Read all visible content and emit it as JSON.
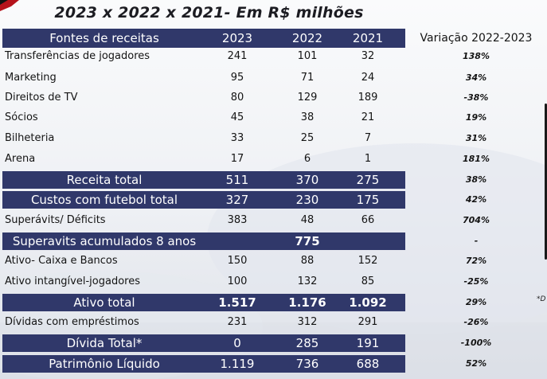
{
  "title": "2023 x 2022 x 2021- Em R$ milhões",
  "side_note": "*D",
  "header": {
    "label": "Fontes de receitas",
    "y2023": "2023",
    "y2022": "2022",
    "y2021": "2021",
    "variation": "Variação 2022-2023"
  },
  "rows": [
    {
      "label": "Transferências de jogadores",
      "v2023": "241",
      "v2022": "101",
      "v2021": "32",
      "var": "138%"
    },
    {
      "label": "Marketing",
      "v2023": "95",
      "v2022": "71",
      "v2021": "24",
      "var": "34%"
    },
    {
      "label": "Direitos de TV",
      "v2023": "80",
      "v2022": "129",
      "v2021": "189",
      "var": "-38%"
    },
    {
      "label": "Sócios",
      "v2023": "45",
      "v2022": "38",
      "v2021": "21",
      "var": "19%"
    },
    {
      "label": "Bilheteria",
      "v2023": "33",
      "v2022": "25",
      "v2021": "7",
      "var": "31%"
    },
    {
      "label": "Arena",
      "v2023": "17",
      "v2022": "6",
      "v2021": "1",
      "var": "181%"
    },
    {
      "label": "Receita total",
      "v2023": "511",
      "v2022": "370",
      "v2021": "275",
      "var": "38%"
    },
    {
      "label": "Custos com futebol total",
      "v2023": "327",
      "v2022": "230",
      "v2021": "175",
      "var": "42%"
    },
    {
      "label": "Superávits/ Déficits",
      "v2023": "383",
      "v2022": "48",
      "v2021": "66",
      "var": "704%"
    },
    {
      "label": "Superavits acumulados 8 anos",
      "combined": "775",
      "var": "-"
    },
    {
      "label": "Ativo- Caixa e Bancos",
      "v2023": "150",
      "v2022": "88",
      "v2021": "152",
      "var": "72%"
    },
    {
      "label": "Ativo intangível-jogadores",
      "v2023": "100",
      "v2022": "132",
      "v2021": "85",
      "var": "-25%"
    },
    {
      "label": "Ativo total",
      "v2023": "1.517",
      "v2022": "1.176",
      "v2021": "1.092",
      "var": "29%"
    },
    {
      "label": "Dívidas com empréstimos",
      "v2023": "231",
      "v2022": "312",
      "v2021": "291",
      "var": "-26%"
    },
    {
      "label": "Dívida Total*",
      "v2023": "0",
      "v2022": "285",
      "v2021": "191",
      "var": "-100%"
    },
    {
      "label": "Patrimônio Líquido",
      "v2023": "1.119",
      "v2022": "736",
      "v2021": "688",
      "var": "52%"
    }
  ],
  "colors": {
    "band": "#30386a",
    "text": "#141414",
    "band_text": "#ffffff"
  }
}
